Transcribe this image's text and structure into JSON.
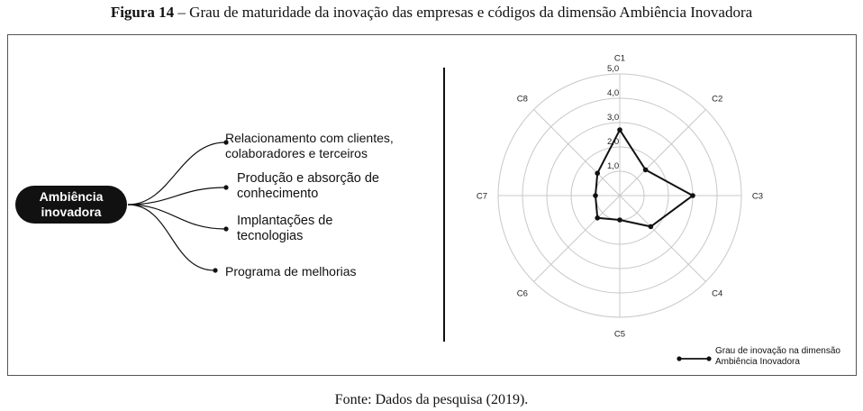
{
  "caption": {
    "prefix": "Figura 14",
    "text": " – Grau de maturidade da inovação das empresas e códigos da dimensão Ambiência Inovadora"
  },
  "mindmap": {
    "center_line1": "Ambiência",
    "center_line2": "inovadora",
    "branches": [
      {
        "line1": "Relacionamento com clientes,",
        "line2": "colaboradores e terceiros"
      },
      {
        "line1": "Produção e absorção de",
        "line2": "conhecimento"
      },
      {
        "line1": "Implantações de",
        "line2": "tecnologias"
      },
      {
        "line1": "Programa de melhorias",
        "line2": ""
      }
    ]
  },
  "chart_data": {
    "type": "radar",
    "axes": [
      "C1",
      "C2",
      "C3",
      "C4",
      "C5",
      "C6",
      "C7",
      "C8"
    ],
    "ring_values": [
      1.0,
      2.0,
      3.0,
      4.0,
      5.0
    ],
    "ring_labels": [
      "1,0",
      "2,0",
      "3,0",
      "4,0",
      "5,0"
    ],
    "rmax": 5.0,
    "series": [
      {
        "name": "Grau de inovação na dimensão Ambiência Inovadora",
        "values": [
          2.7,
          1.5,
          3.0,
          1.8,
          1.0,
          1.3,
          1.0,
          1.3
        ]
      }
    ],
    "legend_line1": "Grau de inovação na dimensão",
    "legend_line2": "Ambiência Inovadora",
    "legend_position": "bottom-right"
  },
  "source": "Fonte: Dados da pesquisa (2019)."
}
